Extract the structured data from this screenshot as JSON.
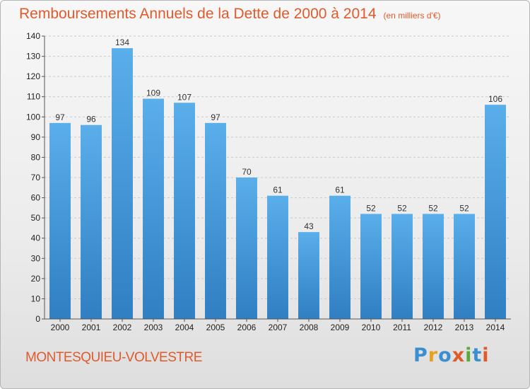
{
  "title": "Remboursements Annuels de la Dette de 2000 à 2014",
  "unit_note": "(en milliers d'€)",
  "place": "MONTESQUIEU-VOLVESTRE",
  "logo": {
    "text": "Proxiti",
    "colors": [
      "#3a8fd0",
      "#e8a020",
      "#3a8fd0",
      "#e05a2c",
      "#5aaa3a",
      "#3a8fd0",
      "#e05a2c"
    ]
  },
  "chart_data": {
    "type": "bar",
    "categories": [
      "2000",
      "2001",
      "2002",
      "2003",
      "2004",
      "2005",
      "2006",
      "2007",
      "2008",
      "2009",
      "2010",
      "2011",
      "2012",
      "2013",
      "2014"
    ],
    "values": [
      97,
      96,
      134,
      109,
      107,
      97,
      70,
      61,
      43,
      61,
      52,
      52,
      52,
      52,
      106
    ],
    "ylim": [
      0,
      140
    ],
    "yticks": [
      0,
      10,
      20,
      30,
      40,
      50,
      60,
      70,
      80,
      90,
      100,
      110,
      120,
      130,
      140
    ],
    "grid": true,
    "bar_color": "#4a9ee0"
  }
}
